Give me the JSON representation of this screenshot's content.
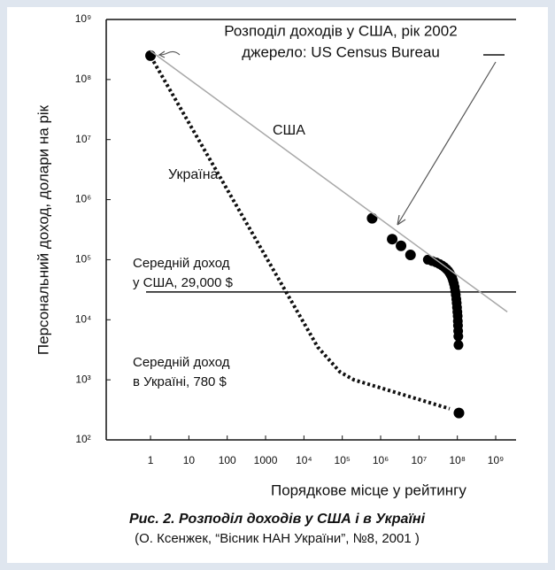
{
  "chart_data": {
    "type": "line",
    "title": "Розподіл доходів у США, рік  2002",
    "subtitle": "джерело: US Census Bureau",
    "x_label": "Порядкове місце  у рейтингу",
    "y_label": "Персональний доход, долари на рік",
    "log_x": true,
    "log_y": true,
    "xlim": [
      0.07,
      2600000000
    ],
    "ylim": [
      100,
      1000000000
    ],
    "xticks": [
      1,
      10,
      100,
      1000,
      {
        "value": 10000,
        "label": "10⁴"
      },
      {
        "value": 100000,
        "label": "10⁵"
      },
      {
        "value": 1000000,
        "label": "10⁶"
      },
      {
        "value": 10000000,
        "label": "10⁷"
      },
      {
        "value": 100000000,
        "label": "10⁸"
      },
      {
        "value": 1000000000,
        "label": "10⁹"
      }
    ],
    "yticks": [
      {
        "value": 100,
        "label": "10²"
      },
      {
        "value": 1000,
        "label": "10³"
      },
      {
        "value": 10000,
        "label": "10⁴"
      },
      {
        "value": 100000,
        "label": "10⁵"
      },
      {
        "value": 1000000,
        "label": "10⁶"
      },
      {
        "value": 10000000,
        "label": "10⁷"
      },
      {
        "value": 100000000,
        "label": "10⁸"
      },
      {
        "value": 1000000000,
        "label": "10⁹"
      }
    ],
    "series": [
      {
        "name": "США",
        "style": "markers",
        "color": "#000000",
        "x": [
          1,
          600000,
          2000000,
          3400000,
          6000000,
          17000000,
          22000000,
          28000000,
          34000000,
          40000000,
          46000000,
          52000000,
          58000000,
          63000000,
          68000000,
          73000000,
          77000000,
          81000000,
          85000000,
          88000000,
          91000000,
          94000000,
          96000000,
          98000000,
          100000000,
          102000000,
          103000000,
          104000000,
          105000000,
          106000000,
          107000000,
          110000000
        ],
        "values": [
          250000000,
          490000,
          220000,
          170000,
          120000,
          100000,
          95000,
          90000,
          85000,
          80000,
          75000,
          70000,
          65000,
          60000,
          55000,
          50000,
          45000,
          40000,
          35000,
          30000,
          26000,
          22000,
          19000,
          16000,
          13500,
          11500,
          9500,
          8000,
          6500,
          5300,
          3800,
          280
        ]
      },
      {
        "style": "line",
        "color": "#a8a8a8",
        "x": [
          1,
          2000000000
        ],
        "values": [
          300000000,
          13500
        ]
      },
      {
        "name": "Україна",
        "style": "dotted",
        "color": "#111111",
        "x": [
          1.2,
          23000,
          87000,
          200000,
          63000000
        ],
        "values": [
          200000000,
          3500,
          1350,
          1000,
          330
        ]
      }
    ],
    "usa_mean": {
      "value": 29000,
      "text": [
        "Середній доход",
        "у США,  29,000 $"
      ]
    },
    "ukraine_mean": {
      "text": [
        "Середній доход",
        "в Україні,  780 $"
      ]
    },
    "caption": "Рис. 2. Розподіл доходів у США і в Україні",
    "source": "(О. Ксенжек, “Вісник НАН України”, №8, 2001 )"
  }
}
